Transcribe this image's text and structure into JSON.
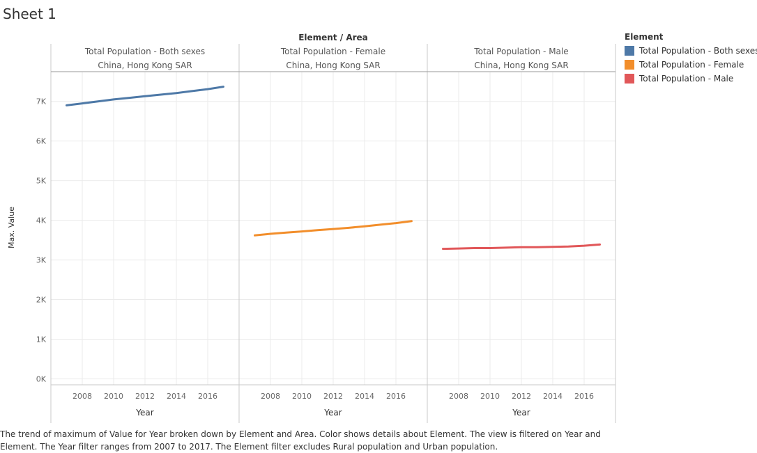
{
  "sheet": {
    "title": "Sheet 1"
  },
  "chart_data": {
    "type": "line",
    "column_header_title": "Element / Area",
    "panels": [
      {
        "element": "Total Population - Both sexes",
        "area": "China, Hong Kong SAR"
      },
      {
        "element": "Total Population - Female",
        "area": "China, Hong Kong SAR"
      },
      {
        "element": "Total Population - Male",
        "area": "China, Hong Kong SAR"
      }
    ],
    "x": [
      2007,
      2008,
      2009,
      2010,
      2011,
      2012,
      2013,
      2014,
      2015,
      2016,
      2017
    ],
    "series": [
      {
        "name": "Total Population - Both sexes",
        "color": "#4e79a7",
        "values": [
          6900,
          6950,
          7000,
          7050,
          7090,
          7130,
          7170,
          7210,
          7260,
          7310,
          7370
        ]
      },
      {
        "name": "Total Population - Female",
        "color": "#f28e2b",
        "values": [
          3620,
          3660,
          3690,
          3720,
          3750,
          3780,
          3810,
          3850,
          3890,
          3930,
          3980
        ]
      },
      {
        "name": "Total Population - Male",
        "color": "#e15759",
        "values": [
          3280,
          3290,
          3300,
          3300,
          3310,
          3320,
          3320,
          3330,
          3340,
          3360,
          3390
        ]
      }
    ],
    "xlabel": "Year",
    "ylabel": "Max. Value",
    "xticks": [
      2008,
      2010,
      2012,
      2014,
      2016
    ],
    "xlim": [
      2006,
      2018
    ],
    "yticks": [
      0,
      1000,
      2000,
      3000,
      4000,
      5000,
      6000,
      7000
    ],
    "ytick_labels": [
      "0K",
      "1K",
      "2K",
      "3K",
      "4K",
      "5K",
      "6K",
      "7K"
    ],
    "ylim": [
      -150,
      7750
    ],
    "grid": true,
    "legend": {
      "title": "Element",
      "position": "right",
      "items": [
        {
          "label": "Total Population - Both sexes",
          "color": "#4e79a7"
        },
        {
          "label": "Total Population - Female",
          "color": "#f28e2b"
        },
        {
          "label": "Total Population - Male",
          "color": "#e15759"
        }
      ]
    }
  },
  "caption": "The trend of maximum of  Value for Year broken down by Element and Area.  Color shows details about Element. The view is filtered on Year and Element. The Year filter ranges from 2007 to 2017. The Element filter excludes Rural population and Urban population."
}
